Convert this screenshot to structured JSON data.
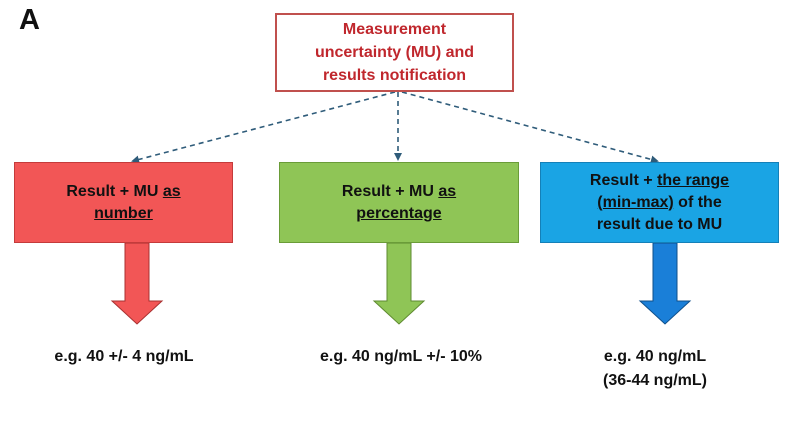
{
  "panel_label": "A",
  "top_box": {
    "lines": [
      "Measurement",
      "uncertainty (MU) and",
      "results notification"
    ]
  },
  "boxes": {
    "number": {
      "prefix": "Result + MU ",
      "underlined_1": "as",
      "underlined_2": "number"
    },
    "percentage": {
      "prefix": "Result + MU ",
      "underlined_1": "as",
      "underlined_2": "percentage"
    },
    "range": {
      "prefix": "Result + ",
      "underlined_1": "the range",
      "underlined_2": "(min-max)",
      "suffix_2": " of the",
      "line_3": "result due to MU"
    }
  },
  "examples": {
    "number": "e.g. 40 +/- 4 ng/mL",
    "percentage": "e.g. 40 ng/mL +/- 10%",
    "range_line_1": "e.g. 40 ng/mL",
    "range_line_2": "(36-44 ng/mL)"
  },
  "colors": {
    "top_border": "#c0504d",
    "top_text": "#c0272d",
    "number_box": "#f25656",
    "percentage_box": "#8fc556",
    "range_box": "#1aa4e4",
    "number_arrow": "#f25656",
    "percentage_arrow": "#8fc556",
    "range_arrow": "#1a7fd8",
    "connector": "#2f5c7a"
  }
}
